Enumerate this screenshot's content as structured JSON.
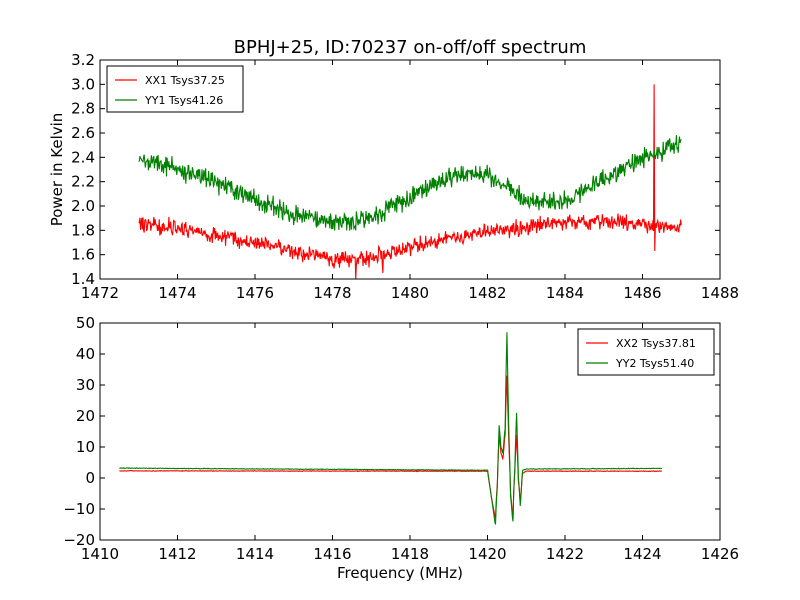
{
  "figure": {
    "title": "BPHJ+25, ID:70237 on-off/off spectrum"
  },
  "chart_data": [
    {
      "type": "line",
      "title": "BPHJ+25, ID:70237 on-off/off spectrum",
      "xlabel": "",
      "ylabel": "Power in Kelvin",
      "xlim": [
        1472,
        1488
      ],
      "ylim": [
        1.4,
        3.2
      ],
      "xticks": [
        "1472",
        "1474",
        "1476",
        "1478",
        "1480",
        "1482",
        "1484",
        "1486",
        "1488"
      ],
      "yticks": [
        "1.4",
        "1.6",
        "1.8",
        "2.0",
        "2.2",
        "2.4",
        "2.6",
        "2.8",
        "3.0",
        "3.2"
      ],
      "grid": false,
      "legend_position": "top-left",
      "series": [
        {
          "name": "XX1 Tsys37.25",
          "color": "#ff0000",
          "noise": 0.045,
          "x": [
            1473.0,
            1474.0,
            1475.0,
            1476.0,
            1477.0,
            1478.0,
            1479.0,
            1480.0,
            1481.0,
            1482.0,
            1483.0,
            1484.0,
            1485.0,
            1486.0,
            1487.0
          ],
          "values": [
            1.86,
            1.82,
            1.76,
            1.7,
            1.63,
            1.56,
            1.57,
            1.66,
            1.74,
            1.79,
            1.83,
            1.87,
            1.88,
            1.84,
            1.82
          ],
          "spikes": [
            {
              "x": 1486.3,
              "y": 3.0
            },
            {
              "x": 1486.32,
              "y": 1.63
            },
            {
              "x": 1478.6,
              "y": 1.4
            },
            {
              "x": 1479.3,
              "y": 1.45
            }
          ]
        },
        {
          "name": "YY1 Tsys41.26",
          "color": "#008000",
          "noise": 0.055,
          "x": [
            1473.0,
            1474.0,
            1475.0,
            1476.0,
            1477.0,
            1478.0,
            1479.0,
            1480.0,
            1481.0,
            1482.0,
            1483.0,
            1484.0,
            1485.0,
            1486.0,
            1487.0
          ],
          "values": [
            2.4,
            2.3,
            2.2,
            2.05,
            1.93,
            1.87,
            1.89,
            2.07,
            2.25,
            2.27,
            2.04,
            2.04,
            2.22,
            2.4,
            2.5
          ],
          "spikes": []
        }
      ]
    },
    {
      "type": "line",
      "title": "",
      "xlabel": "Frequency (MHz)",
      "ylabel": "",
      "xlim": [
        1410,
        1426
      ],
      "ylim": [
        -20,
        50
      ],
      "xticks": [
        "1410",
        "1412",
        "1414",
        "1416",
        "1418",
        "1420",
        "1422",
        "1424",
        "1426"
      ],
      "yticks": [
        "−20",
        "−10",
        "0",
        "10",
        "20",
        "30",
        "40",
        "50"
      ],
      "grid": false,
      "legend_position": "top-right",
      "series": [
        {
          "name": "XX2 Tsys37.81",
          "color": "#ff0000",
          "noise": 0.05,
          "x": [
            1410.5,
            1420.0,
            1420.1,
            1420.2,
            1420.25,
            1420.3,
            1420.35,
            1420.4,
            1420.45,
            1420.5,
            1420.55,
            1420.6,
            1420.65,
            1420.7,
            1420.75,
            1420.8,
            1420.85,
            1420.9,
            1421.0,
            1424.5
          ],
          "values": [
            2.3,
            2.2,
            -6.0,
            -13.0,
            -2.0,
            14.0,
            8.0,
            6.0,
            14.0,
            33.0,
            12.0,
            -5.0,
            -13.0,
            2.0,
            14.0,
            -1.0,
            -8.0,
            1.5,
            2.2,
            2.2
          ]
        },
        {
          "name": "YY2 Tsys51.40",
          "color": "#008000",
          "noise": 0.05,
          "x": [
            1410.5,
            1420.0,
            1420.1,
            1420.2,
            1420.25,
            1420.3,
            1420.35,
            1420.4,
            1420.45,
            1420.5,
            1420.55,
            1420.6,
            1420.65,
            1420.7,
            1420.75,
            1420.8,
            1420.85,
            1420.9,
            1421.0,
            1424.5
          ],
          "values": [
            3.2,
            2.5,
            -6.0,
            -15.0,
            -3.0,
            17.0,
            10.0,
            8.0,
            16.0,
            47.0,
            16.0,
            -6.0,
            -14.0,
            3.0,
            21.0,
            0.0,
            -9.0,
            2.5,
            2.9,
            3.1
          ]
        }
      ]
    }
  ]
}
